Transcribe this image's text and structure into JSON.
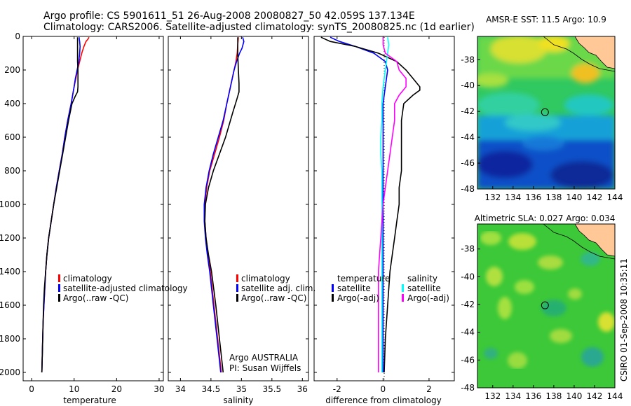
{
  "header": {
    "line1": "Argo profile: CS 5901611_51 26-Aug-2008 20080827_50 42.059S 137.134E",
    "line2": "Climatology: CARS2006. Satellite-adjusted climatology: synTS_20080825.nc (1d earlier)"
  },
  "colors": {
    "climatology": "#ff0000",
    "satellite": "#0000ff",
    "argo": "#000000",
    "sal_satellite": "#00ffff",
    "sal_argo": "#ff00ff",
    "land": "#ffc896"
  },
  "chart_data": [
    {
      "id": "temperature",
      "type": "line",
      "xlabel": "temperature",
      "xlim": [
        -2,
        31
      ],
      "ylim": [
        2050,
        0
      ],
      "xticks": [
        0,
        10,
        20,
        30
      ],
      "yticks": [
        0,
        200,
        400,
        600,
        800,
        1000,
        1200,
        1400,
        1600,
        1800,
        2000
      ],
      "legend": [
        "climatology",
        "satellite-adjusted climatology",
        "Argo(..raw -QC)"
      ],
      "series": [
        {
          "name": "climatology",
          "color": "#ff0000",
          "y": [
            5,
            15,
            30,
            60,
            100,
            150,
            200,
            250,
            300,
            400,
            500,
            600,
            700,
            800,
            900,
            1000,
            1100,
            1200,
            1300,
            1400,
            1500,
            1600,
            1700,
            1800,
            1900,
            2000
          ],
          "x": [
            13.5,
            13.3,
            12.8,
            12.3,
            11.8,
            11.3,
            10.8,
            10.4,
            10.0,
            9.3,
            8.5,
            7.8,
            7.2,
            6.5,
            5.8,
            5.2,
            4.6,
            4.0,
            3.6,
            3.3,
            3.1,
            2.9,
            2.7,
            2.6,
            2.5,
            2.4
          ]
        },
        {
          "name": "satellite-adjusted climatology",
          "color": "#0000ff",
          "y": [
            5,
            15,
            30,
            60,
            100,
            150,
            200,
            250,
            300,
            400,
            500,
            600,
            700,
            800,
            900,
            1000,
            1100,
            1200,
            1300,
            1400,
            1500,
            1600,
            1700,
            1800,
            1900,
            2000
          ],
          "x": [
            11.2,
            11.2,
            11.3,
            11.4,
            11.3,
            11.1,
            10.7,
            10.3,
            10.0,
            9.3,
            8.5,
            7.8,
            7.2,
            6.5,
            5.8,
            5.2,
            4.6,
            4.0,
            3.6,
            3.3,
            3.1,
            2.9,
            2.7,
            2.6,
            2.5,
            2.4
          ]
        },
        {
          "name": "Argo(..raw -QC)",
          "color": "#000000",
          "y": [
            5,
            50,
            100,
            150,
            200,
            250,
            300,
            330,
            360,
            400,
            500,
            600,
            700,
            800,
            900,
            1000,
            1100,
            1200,
            1300,
            1400,
            1500,
            1600,
            1700,
            1800,
            1900,
            2000
          ],
          "x": [
            10.8,
            10.8,
            10.8,
            10.8,
            10.9,
            10.9,
            10.9,
            10.8,
            10.2,
            9.5,
            8.7,
            8.0,
            7.3,
            6.6,
            5.9,
            5.2,
            4.6,
            4.0,
            3.6,
            3.3,
            3.0,
            2.8,
            2.7,
            2.6,
            2.5,
            2.4
          ]
        }
      ]
    },
    {
      "id": "salinity",
      "type": "line",
      "xlabel": "salinity",
      "xlim": [
        33.8,
        36.1
      ],
      "ylim": [
        2050,
        0
      ],
      "xticks": [
        34,
        34.5,
        35,
        35.5,
        36
      ],
      "legend": [
        "climatology",
        "satellite adj. clim.",
        "Argo(..raw -QC)"
      ],
      "annotation": [
        "Argo AUSTRALIA",
        "PI: Susan Wijffels"
      ],
      "series": [
        {
          "name": "climatology",
          "color": "#ff0000",
          "y": [
            5,
            50,
            100,
            150,
            200,
            300,
            400,
            500,
            600,
            700,
            800,
            900,
            1000,
            1100,
            1200,
            1300,
            1400,
            1600,
            1800,
            2000
          ],
          "x": [
            34.95,
            34.94,
            34.93,
            34.91,
            34.88,
            34.82,
            34.76,
            34.71,
            34.64,
            34.56,
            34.48,
            34.43,
            34.4,
            34.4,
            34.42,
            34.45,
            34.49,
            34.55,
            34.61,
            34.67
          ]
        },
        {
          "name": "satellite adj. clim.",
          "color": "#0000ff",
          "y": [
            5,
            30,
            70,
            100,
            150,
            200,
            300,
            400,
            500,
            600,
            700,
            800,
            900,
            1000,
            1100,
            1200,
            1300,
            1400,
            1600,
            1800,
            2000
          ],
          "x": [
            35.02,
            35.04,
            35.01,
            34.97,
            34.92,
            34.88,
            34.82,
            34.76,
            34.7,
            34.62,
            34.54,
            34.47,
            34.42,
            34.39,
            34.39,
            34.41,
            34.44,
            34.48,
            34.54,
            34.6,
            34.66
          ]
        },
        {
          "name": "Argo(..raw -QC)",
          "color": "#000000",
          "y": [
            5,
            100,
            200,
            280,
            330,
            380,
            450,
            500,
            600,
            700,
            800,
            900,
            1000,
            1100,
            1200,
            1300,
            1400,
            1600,
            1800,
            2000
          ],
          "x": [
            34.94,
            34.94,
            34.95,
            34.96,
            34.96,
            34.92,
            34.86,
            34.82,
            34.74,
            34.64,
            34.54,
            34.46,
            34.41,
            34.4,
            34.42,
            34.46,
            34.51,
            34.58,
            34.64,
            34.7
          ]
        }
      ]
    },
    {
      "id": "difference",
      "type": "line",
      "xlabel": "difference from climatology",
      "xlim": [
        -3,
        3.1
      ],
      "ylim": [
        2050,
        0
      ],
      "xticks": [
        -2,
        0,
        2
      ],
      "legend_left_title": "temperature",
      "legend_right_title": "salinity",
      "legend": [
        "satellite",
        "Argo(-adj)",
        "satellite",
        "Argo(-adj)"
      ],
      "series": [
        {
          "name": "satellite",
          "color": "#0000ff",
          "y": [
            5,
            30,
            60,
            100,
            150,
            200,
            300,
            400,
            600,
            800,
            1000,
            1200,
            1400,
            1600,
            1800,
            2000
          ],
          "x": [
            -2.3,
            -1.9,
            -1.2,
            -0.4,
            0.1,
            0.2,
            0.1,
            0.0,
            0.0,
            0.0,
            0.0,
            0.0,
            0.0,
            0.0,
            0.0,
            0.0
          ]
        },
        {
          "name": "Argo(-adj)",
          "color": "#000000",
          "y": [
            5,
            30,
            60,
            100,
            150,
            200,
            250,
            300,
            320,
            350,
            400,
            500,
            600,
            700,
            800,
            900,
            1000,
            1100,
            1200,
            1400,
            1600,
            1800,
            2000
          ],
          "x": [
            -2.7,
            -2.3,
            -1.2,
            -0.2,
            0.6,
            1.0,
            1.3,
            1.6,
            1.6,
            1.3,
            0.9,
            0.8,
            0.8,
            0.8,
            0.8,
            0.7,
            0.7,
            0.6,
            0.5,
            0.3,
            0.2,
            0.1,
            0.05
          ]
        },
        {
          "name": "satellite",
          "color": "#00ffff",
          "y": [
            5,
            50,
            100,
            200,
            300,
            400,
            500,
            600,
            700,
            800,
            900,
            1000,
            1100,
            1200,
            1400,
            1600,
            1800,
            2000
          ],
          "x": [
            0.2,
            0.25,
            0.2,
            0.1,
            0.0,
            -0.05,
            -0.05,
            -0.1,
            -0.1,
            -0.05,
            -0.05,
            -0.05,
            -0.05,
            -0.05,
            -0.05,
            -0.05,
            -0.05,
            -0.05
          ]
        },
        {
          "name": "Argo(-adj)",
          "color": "#ff00ff",
          "y": [
            5,
            50,
            100,
            150,
            200,
            250,
            300,
            350,
            400,
            500,
            600,
            700,
            800,
            900,
            1000,
            1100,
            1200,
            1300,
            1400,
            1600,
            1800,
            2000
          ],
          "x": [
            0.0,
            0.0,
            0.1,
            0.6,
            0.7,
            1.0,
            1.0,
            0.7,
            0.5,
            0.5,
            0.4,
            0.3,
            0.2,
            0.1,
            0.0,
            -0.05,
            -0.1,
            -0.15,
            -0.2,
            -0.2,
            -0.2,
            -0.2
          ]
        }
      ]
    },
    {
      "id": "sst_map",
      "type": "heatmap",
      "title": "AMSR-E SST: 11.5 Argo: 10.9",
      "xlim": [
        130.5,
        144
      ],
      "ylim": [
        -48,
        -36.2
      ],
      "xticks": [
        132,
        134,
        136,
        138,
        140,
        142,
        144
      ],
      "yticks": [
        -38,
        -40,
        -42,
        -44,
        -46,
        -48
      ],
      "argo_position": {
        "lon": 137.134,
        "lat": -42.059
      }
    },
    {
      "id": "sla_map",
      "type": "heatmap",
      "title": "Altimetric SLA: 0.027 Argo: 0.034",
      "xlim": [
        130.5,
        144
      ],
      "ylim": [
        -48,
        -36.2
      ],
      "xticks": [
        132,
        134,
        136,
        138,
        140,
        142,
        144
      ],
      "yticks": [
        -38,
        -40,
        -42,
        -44,
        -46,
        -48
      ],
      "argo_position": {
        "lon": 137.134,
        "lat": -42.059
      }
    }
  ],
  "stamp": "CSIRO 01-Sep-2008 10:35:11"
}
